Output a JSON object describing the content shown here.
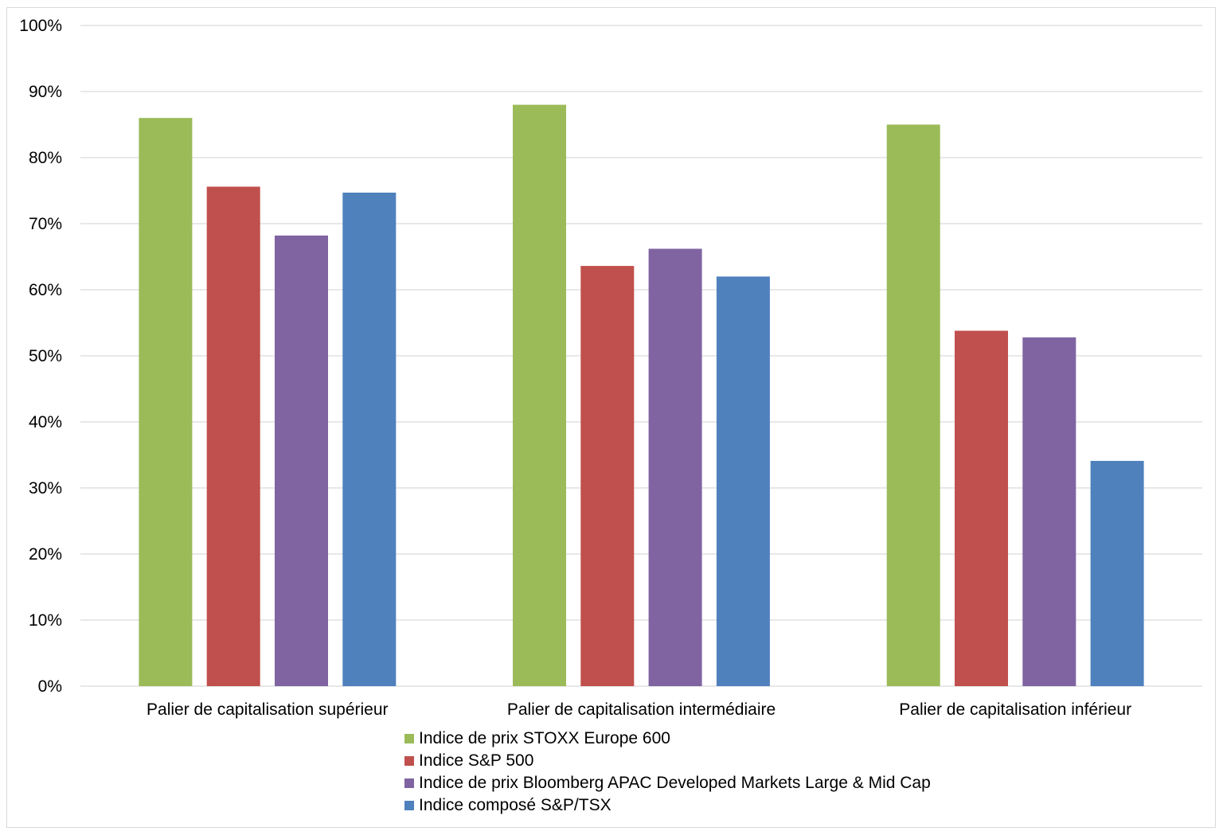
{
  "chart_data": {
    "type": "bar",
    "categories": [
      "Palier de capitalisation supérieur",
      "Palier de capitalisation intermédiaire",
      "Palier de capitalisation inférieur"
    ],
    "series": [
      {
        "name": "Indice de prix STOXX Europe 600",
        "color": "#9BBB59",
        "values": [
          86,
          88,
          85
        ]
      },
      {
        "name": "Indice S&P 500",
        "color": "#C0504D",
        "values": [
          75.6,
          63.6,
          53.8
        ]
      },
      {
        "name": "Indice de prix Bloomberg APAC Developed Markets Large & Mid Cap",
        "color": "#8064A2",
        "values": [
          68.2,
          66.2,
          52.8
        ]
      },
      {
        "name": "Indice composé S&P/TSX",
        "color": "#4F81BD",
        "values": [
          74.7,
          62,
          34.1
        ]
      }
    ],
    "yticks": [
      "0%",
      "10%",
      "20%",
      "30%",
      "40%",
      "50%",
      "60%",
      "70%",
      "80%",
      "90%",
      "100%"
    ],
    "ylim": [
      0,
      100
    ],
    "title": "",
    "xlabel": "",
    "ylabel": "",
    "grid": true,
    "legend_position": "bottom"
  }
}
